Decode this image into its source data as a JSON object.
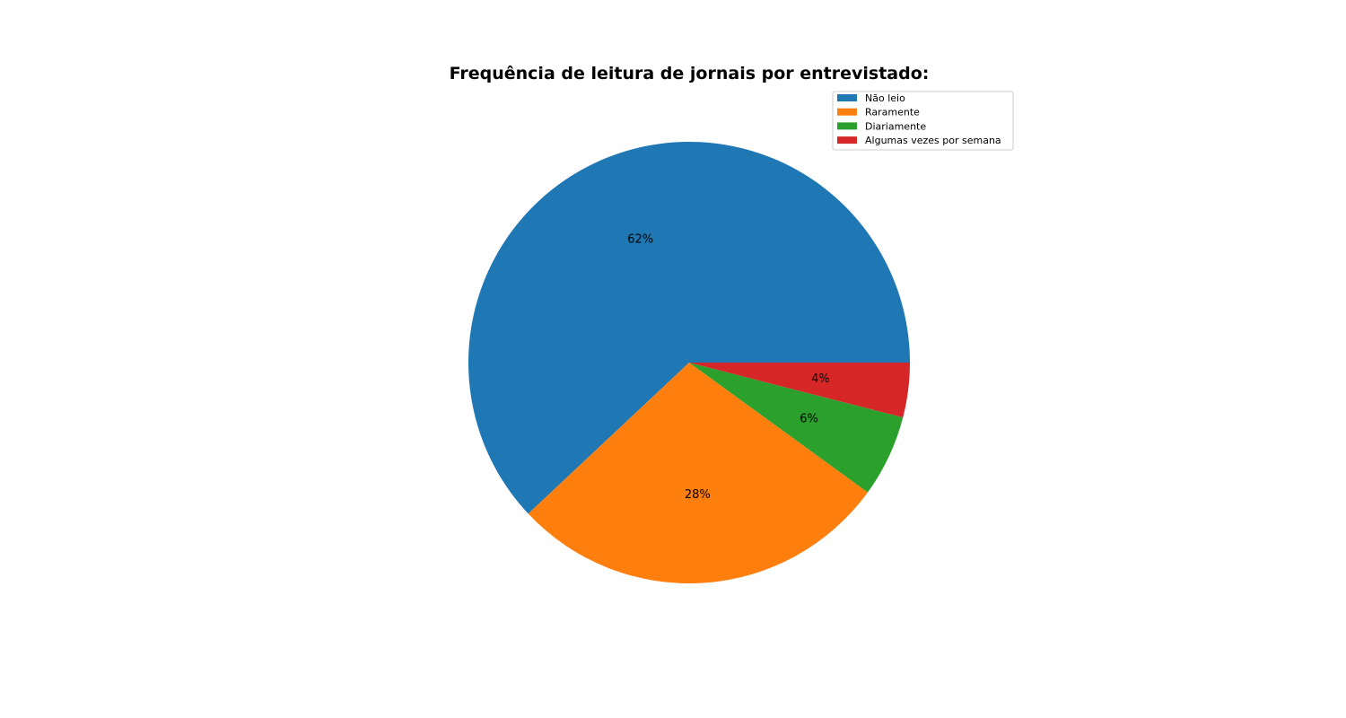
{
  "chart_data": {
    "type": "pie",
    "title": "Frequência de leitura de jornais por entrevistado:",
    "start_angle_deg": 0,
    "direction": "counterclockwise",
    "legend_position": "top-right",
    "slices": [
      {
        "label": "Não leio",
        "value": 62,
        "pct_label": "62%",
        "color": "#1f77b4"
      },
      {
        "label": "Raramente",
        "value": 28,
        "pct_label": "28%",
        "color": "#ff7f0e"
      },
      {
        "label": "Diariamente",
        "value": 6,
        "pct_label": "6%",
        "color": "#2ca02c"
      },
      {
        "label": "Algumas vezes por semana",
        "value": 4,
        "pct_label": "4%",
        "color": "#d62728"
      }
    ]
  }
}
